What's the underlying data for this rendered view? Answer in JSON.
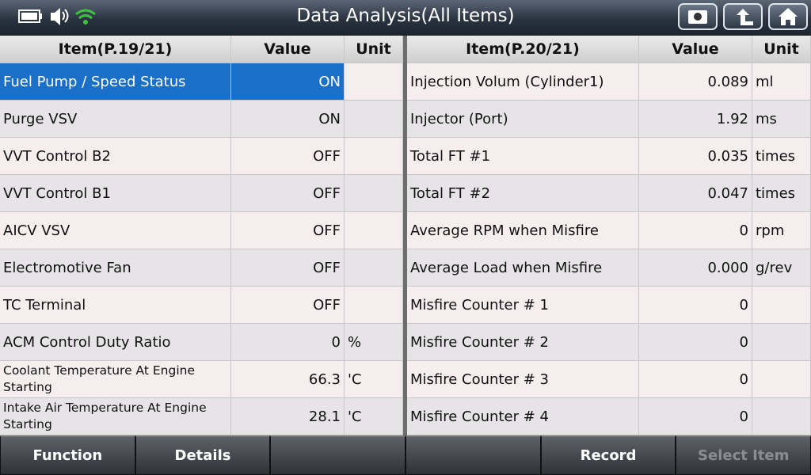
{
  "header": {
    "title": "Data Analysis(All Items)"
  },
  "tables": [
    {
      "columns": [
        "Item(P.19/21)",
        "Value",
        "Unit"
      ],
      "rows": [
        {
          "item": "Fuel Pump / Speed Status",
          "value": "ON"
        },
        {
          "item": "Purge VSV",
          "value": "ON"
        },
        {
          "item": "VVT Control B2",
          "value": "OFF"
        },
        {
          "item": "VVT Control B1",
          "value": "OFF"
        },
        {
          "item": "AICV VSV",
          "value": "OFF"
        },
        {
          "item": "Electromotive Fan",
          "value": "OFF"
        },
        {
          "item": "TC Terminal",
          "value": "OFF"
        },
        {
          "item": "ACM Control Duty Ratio",
          "value": "0",
          "unit": "%"
        },
        {
          "item": "Coolant Temperature At Engine Starting",
          "value": "66.3",
          "unit": "'C"
        },
        {
          "item": "Intake Air Temperature At Engine Starting",
          "value": "28.1",
          "unit": "'C"
        }
      ]
    },
    {
      "columns": [
        "Item(P.20/21)",
        "Value",
        "Unit"
      ],
      "rows": [
        {
          "item": "Injection Volum (Cylinder1)",
          "value": "0.089",
          "unit": "ml"
        },
        {
          "item": "Injector (Port)",
          "value": "1.92",
          "unit": "ms"
        },
        {
          "item": "Total FT #1",
          "value": "0.035",
          "unit": "times"
        },
        {
          "item": "Total FT #2",
          "value": "0.047",
          "unit": "times"
        },
        {
          "item": "Average RPM when Misfire",
          "value": "0",
          "unit": "rpm"
        },
        {
          "item": "Average Load when Misfire",
          "value": "0.000",
          "unit": "g/rev"
        },
        {
          "item": "Misfire Counter # 1",
          "value": "0"
        },
        {
          "item": "Misfire Counter # 2",
          "value": "0"
        },
        {
          "item": "Misfire Counter # 3",
          "value": "0"
        },
        {
          "item": "Misfire Counter # 4",
          "value": "0"
        }
      ]
    }
  ],
  "footer": {
    "buttons": [
      "Function",
      "Details",
      "Record",
      "Select Item"
    ]
  }
}
